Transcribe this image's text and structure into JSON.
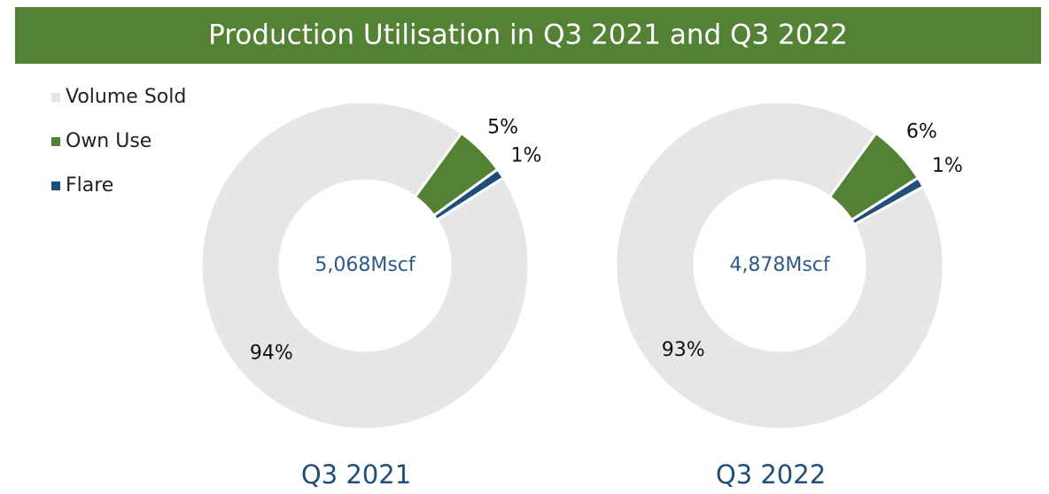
{
  "header": {
    "title": "Production Utilisation in Q3 2021 and Q3 2022"
  },
  "chart_data": [
    {
      "type": "donut",
      "caption": "Q3 2021",
      "center_label": "5,068Mscf",
      "categories": [
        "Volume Sold",
        "Own Use",
        "Flare"
      ],
      "values": [
        94,
        5,
        1
      ],
      "value_labels": [
        "94%",
        "5%",
        "1%"
      ],
      "colors": [
        "#e6e6e6",
        "#548235",
        "#1f4e79"
      ],
      "legend": "top-left"
    },
    {
      "type": "donut",
      "caption": "Q3 2022",
      "center_label": "4,878Mscf",
      "categories": [
        "Volume Sold",
        "Own Use",
        "Flare"
      ],
      "values": [
        93,
        6,
        1
      ],
      "value_labels": [
        "93%",
        "6%",
        "1%"
      ],
      "colors": [
        "#e6e6e6",
        "#548235",
        "#1f4e79"
      ]
    }
  ]
}
